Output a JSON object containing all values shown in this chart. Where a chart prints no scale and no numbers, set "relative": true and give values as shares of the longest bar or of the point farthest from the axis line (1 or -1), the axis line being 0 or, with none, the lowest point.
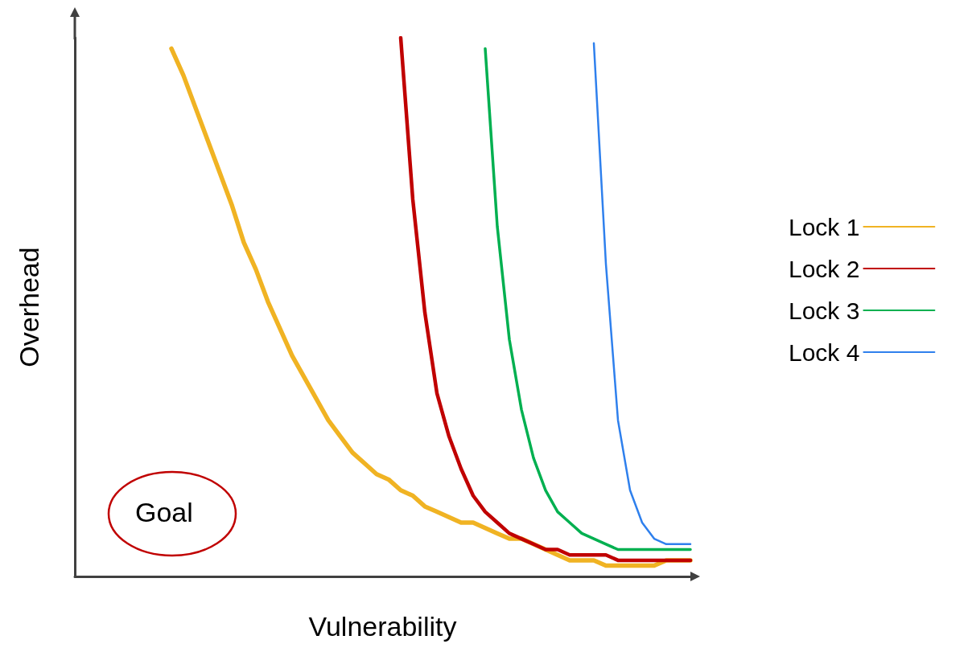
{
  "chart_data": {
    "type": "line",
    "relative": true,
    "xlabel": "Vulnerability",
    "ylabel": "Overhead",
    "annotations": [
      "Goal"
    ],
    "legend": "right",
    "marker": "none",
    "line_style": "solid",
    "grid": false,
    "categories": [
      null,
      null,
      null,
      null,
      null,
      null,
      null,
      null,
      null,
      null,
      null,
      null,
      null,
      null,
      null,
      null,
      null,
      null,
      null,
      null,
      null,
      null,
      null,
      null,
      null,
      null,
      null,
      null,
      null,
      null,
      null,
      null,
      null,
      null,
      null,
      null,
      null,
      null,
      null,
      null,
      null,
      null,
      null,
      null,
      null,
      null,
      null,
      null,
      null,
      null,
      null,
      null
    ],
    "series": [
      {
        "name": "Lock 1",
        "color": "#f0b323",
        "values": [
          null,
          null,
          null,
          null,
          null,
          null,
          null,
          null,
          0.98,
          0.93,
          0.87,
          0.81,
          0.75,
          0.69,
          0.62,
          0.57,
          0.51,
          0.46,
          0.41,
          0.37,
          0.33,
          0.29,
          0.26,
          0.23,
          0.21,
          0.19,
          0.18,
          0.16,
          0.15,
          0.13,
          0.12,
          0.11,
          0.1,
          0.1,
          0.09,
          0.08,
          0.07,
          0.07,
          0.06,
          0.05,
          0.04,
          0.03,
          0.03,
          0.03,
          0.02,
          0.02,
          0.02,
          0.02,
          0.02,
          0.03,
          0.03,
          0.03
        ]
      },
      {
        "name": "Lock 2",
        "color": "#c00000",
        "values": [
          null,
          null,
          null,
          null,
          null,
          null,
          null,
          null,
          null,
          null,
          null,
          null,
          null,
          null,
          null,
          null,
          null,
          null,
          null,
          null,
          null,
          null,
          null,
          null,
          null,
          null,
          null,
          1.0,
          0.7,
          0.49,
          0.34,
          0.26,
          0.2,
          0.15,
          0.12,
          0.1,
          0.08,
          0.07,
          0.06,
          0.05,
          0.05,
          0.04,
          0.04,
          0.04,
          0.04,
          0.03,
          0.03,
          0.03,
          0.03,
          0.03,
          0.03,
          0.03
        ]
      },
      {
        "name": "Lock 3",
        "color": "#00b050",
        "values": [
          null,
          null,
          null,
          null,
          null,
          null,
          null,
          null,
          null,
          null,
          null,
          null,
          null,
          null,
          null,
          null,
          null,
          null,
          null,
          null,
          null,
          null,
          null,
          null,
          null,
          null,
          null,
          null,
          null,
          null,
          null,
          null,
          null,
          null,
          0.98,
          0.65,
          0.44,
          0.31,
          0.22,
          0.16,
          0.12,
          0.1,
          0.08,
          0.07,
          0.06,
          0.05,
          0.05,
          0.05,
          0.05,
          0.05,
          0.05,
          0.05
        ]
      },
      {
        "name": "Lock 4",
        "color": "#2f80ed",
        "values": [
          null,
          null,
          null,
          null,
          null,
          null,
          null,
          null,
          null,
          null,
          null,
          null,
          null,
          null,
          null,
          null,
          null,
          null,
          null,
          null,
          null,
          null,
          null,
          null,
          null,
          null,
          null,
          null,
          null,
          null,
          null,
          null,
          null,
          null,
          null,
          null,
          null,
          null,
          null,
          null,
          null,
          null,
          null,
          0.99,
          0.58,
          0.29,
          0.16,
          0.1,
          0.07,
          0.06,
          0.06,
          0.06
        ]
      }
    ]
  }
}
